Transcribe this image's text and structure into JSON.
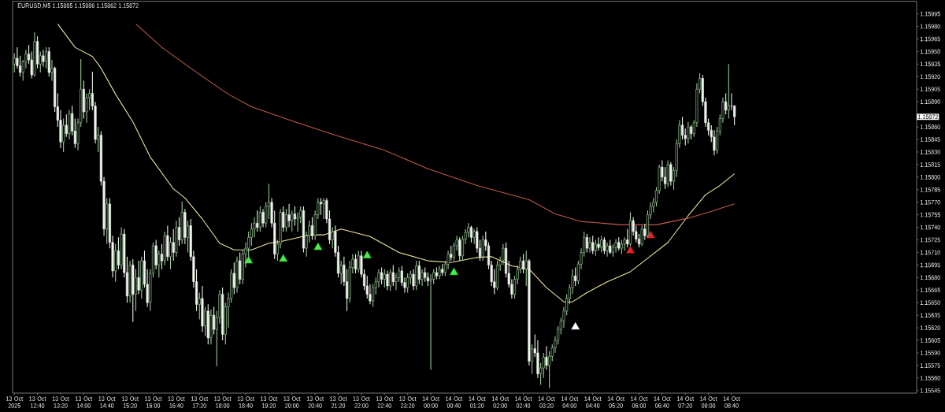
{
  "chart_data": {
    "type": "candlestick",
    "title": "EURUSD,M5 1.15885 1.15886 1.15862 1.15872",
    "x": [
      "2025-10-13T12:00",
      "2025-10-13T12:05",
      "2025-10-13T12:10",
      "2025-10-13T12:15",
      "2025-10-13T12:20",
      "2025-10-13T12:25",
      "2025-10-13T12:30",
      "2025-10-13T12:35",
      "2025-10-13T12:40",
      "2025-10-13T12:45",
      "2025-10-13T12:50",
      "2025-10-13T12:55",
      "2025-10-13T13:00",
      "2025-10-13T13:05",
      "2025-10-13T13:10",
      "2025-10-13T13:15",
      "2025-10-13T13:20",
      "2025-10-13T13:25",
      "2025-10-13T13:30",
      "2025-10-13T13:35",
      "2025-10-13T13:40",
      "2025-10-13T13:45",
      "2025-10-13T13:50",
      "2025-10-13T13:55",
      "2025-10-13T14:00",
      "2025-10-13T14:05",
      "2025-10-13T14:10",
      "2025-10-13T14:15",
      "2025-10-13T14:20",
      "2025-10-13T14:25",
      "2025-10-13T14:30",
      "2025-10-13T14:35",
      "2025-10-13T14:40",
      "2025-10-13T14:45",
      "2025-10-13T14:50",
      "2025-10-13T14:55",
      "2025-10-13T15:00",
      "2025-10-13T15:05",
      "2025-10-13T15:10",
      "2025-10-13T15:15",
      "2025-10-13T15:20",
      "2025-10-13T15:25",
      "2025-10-13T15:30",
      "2025-10-13T15:35",
      "2025-10-13T15:40",
      "2025-10-13T15:45",
      "2025-10-13T15:50",
      "2025-10-13T15:55",
      "2025-10-13T16:00",
      "2025-10-13T16:05",
      "2025-10-13T16:10",
      "2025-10-13T16:15",
      "2025-10-13T16:20",
      "2025-10-13T16:25",
      "2025-10-13T16:30",
      "2025-10-13T16:35",
      "2025-10-13T16:40",
      "2025-10-13T16:45",
      "2025-10-13T16:50",
      "2025-10-13T16:55",
      "2025-10-13T17:00",
      "2025-10-13T17:05",
      "2025-10-13T17:10",
      "2025-10-13T17:15",
      "2025-10-13T17:20",
      "2025-10-13T17:25",
      "2025-10-13T17:30",
      "2025-10-13T17:35",
      "2025-10-13T17:40",
      "2025-10-13T17:45",
      "2025-10-13T17:50",
      "2025-10-13T17:55",
      "2025-10-13T18:00",
      "2025-10-13T18:05",
      "2025-10-13T18:10",
      "2025-10-13T18:15",
      "2025-10-13T18:20",
      "2025-10-13T18:25",
      "2025-10-13T18:30",
      "2025-10-13T18:35",
      "2025-10-13T18:40",
      "2025-10-13T18:45",
      "2025-10-13T18:50",
      "2025-10-13T18:55",
      "2025-10-13T19:00",
      "2025-10-13T19:05",
      "2025-10-13T19:10",
      "2025-10-13T19:15",
      "2025-10-13T19:20",
      "2025-10-13T19:25",
      "2025-10-13T19:30",
      "2025-10-13T19:35",
      "2025-10-13T19:40",
      "2025-10-13T19:45",
      "2025-10-13T19:50",
      "2025-10-13T19:55",
      "2025-10-13T20:00",
      "2025-10-13T20:05",
      "2025-10-13T20:10",
      "2025-10-13T20:15",
      "2025-10-13T20:20",
      "2025-10-13T20:25",
      "2025-10-13T20:30",
      "2025-10-13T20:35",
      "2025-10-13T20:40",
      "2025-10-13T20:45",
      "2025-10-13T20:50",
      "2025-10-13T20:55",
      "2025-10-13T21:00",
      "2025-10-13T21:05",
      "2025-10-13T21:10",
      "2025-10-13T21:15",
      "2025-10-13T21:20",
      "2025-10-13T21:25",
      "2025-10-13T21:30",
      "2025-10-13T21:35",
      "2025-10-13T21:40",
      "2025-10-13T21:45",
      "2025-10-13T21:50",
      "2025-10-13T21:55",
      "2025-10-13T22:00",
      "2025-10-13T22:05",
      "2025-10-13T22:10",
      "2025-10-13T22:15",
      "2025-10-13T22:20",
      "2025-10-13T22:25",
      "2025-10-13T22:30",
      "2025-10-13T22:35",
      "2025-10-13T22:40",
      "2025-10-13T22:45",
      "2025-10-13T22:50",
      "2025-10-13T22:55",
      "2025-10-13T23:00",
      "2025-10-13T23:05",
      "2025-10-13T23:10",
      "2025-10-13T23:15",
      "2025-10-13T23:20",
      "2025-10-13T23:25",
      "2025-10-13T23:30",
      "2025-10-13T23:35",
      "2025-10-13T23:40",
      "2025-10-13T23:45",
      "2025-10-13T23:50",
      "2025-10-13T23:55",
      "2025-10-14T00:00",
      "2025-10-14T00:05",
      "2025-10-14T00:10",
      "2025-10-14T00:15",
      "2025-10-14T00:20",
      "2025-10-14T00:25",
      "2025-10-14T00:30",
      "2025-10-14T00:35",
      "2025-10-14T00:40",
      "2025-10-14T00:45",
      "2025-10-14T00:50",
      "2025-10-14T00:55",
      "2025-10-14T01:00",
      "2025-10-14T01:05",
      "2025-10-14T01:10",
      "2025-10-14T01:15",
      "2025-10-14T01:20",
      "2025-10-14T01:25",
      "2025-10-14T01:30",
      "2025-10-14T01:35",
      "2025-10-14T01:40",
      "2025-10-14T01:45",
      "2025-10-14T01:50",
      "2025-10-14T01:55",
      "2025-10-14T02:00",
      "2025-10-14T02:05",
      "2025-10-14T02:10",
      "2025-10-14T02:15",
      "2025-10-14T02:20",
      "2025-10-14T02:25",
      "2025-10-14T02:30",
      "2025-10-14T02:35",
      "2025-10-14T02:40",
      "2025-10-14T02:45",
      "2025-10-14T02:50",
      "2025-10-14T02:55",
      "2025-10-14T03:00",
      "2025-10-14T03:05",
      "2025-10-14T03:10",
      "2025-10-14T03:15",
      "2025-10-14T03:20",
      "2025-10-14T03:25",
      "2025-10-14T03:30",
      "2025-10-14T03:35",
      "2025-10-14T03:40",
      "2025-10-14T03:45",
      "2025-10-14T03:50",
      "2025-10-14T03:55",
      "2025-10-14T04:00",
      "2025-10-14T04:05",
      "2025-10-14T04:10",
      "2025-10-14T04:15",
      "2025-10-14T04:20",
      "2025-10-14T04:25",
      "2025-10-14T04:30",
      "2025-10-14T04:35",
      "2025-10-14T04:40",
      "2025-10-14T04:45",
      "2025-10-14T04:50",
      "2025-10-14T04:55",
      "2025-10-14T05:00",
      "2025-10-14T05:05",
      "2025-10-14T05:10",
      "2025-10-14T05:15",
      "2025-10-14T05:20",
      "2025-10-14T05:25",
      "2025-10-14T05:30",
      "2025-10-14T05:35",
      "2025-10-14T05:40",
      "2025-10-14T05:45",
      "2025-10-14T05:50",
      "2025-10-14T05:55",
      "2025-10-14T06:00",
      "2025-10-14T06:05",
      "2025-10-14T06:10",
      "2025-10-14T06:15",
      "2025-10-14T06:20",
      "2025-10-14T06:25",
      "2025-10-14T06:30",
      "2025-10-14T06:35",
      "2025-10-14T06:40",
      "2025-10-14T06:45",
      "2025-10-14T06:50",
      "2025-10-14T06:55",
      "2025-10-14T07:00",
      "2025-10-14T07:05",
      "2025-10-14T07:10",
      "2025-10-14T07:15",
      "2025-10-14T07:20",
      "2025-10-14T07:25",
      "2025-10-14T07:30",
      "2025-10-14T07:35",
      "2025-10-14T07:40",
      "2025-10-14T07:45",
      "2025-10-14T07:50",
      "2025-10-14T07:55",
      "2025-10-14T08:00",
      "2025-10-14T08:05",
      "2025-10-14T08:10",
      "2025-10-14T08:15",
      "2025-10-14T08:20",
      "2025-10-14T08:25",
      "2025-10-14T08:30",
      "2025-10-14T08:35",
      "2025-10-14T08:40",
      "2025-10-14T08:45"
    ],
    "ohlc": [
      [
        1.15935,
        1.15948,
        1.15925,
        1.15942
      ],
      [
        1.15942,
        1.15955,
        1.1593,
        1.15933
      ],
      [
        1.15933,
        1.15945,
        1.1592,
        1.15925
      ],
      [
        1.15925,
        1.1594,
        1.15915,
        1.15938
      ],
      [
        1.15938,
        1.15952,
        1.1593,
        1.15947
      ],
      [
        1.15947,
        1.15958,
        1.15935,
        1.1594
      ],
      [
        1.1594,
        1.1595,
        1.15918,
        1.15922
      ],
      [
        1.15922,
        1.15973,
        1.1592,
        1.15962
      ],
      [
        1.15962,
        1.15968,
        1.1593,
        1.15935
      ],
      [
        1.15935,
        1.1595,
        1.15925,
        1.15945
      ],
      [
        1.15945,
        1.15952,
        1.15932,
        1.15938
      ],
      [
        1.15938,
        1.15955,
        1.1593,
        1.1595
      ],
      [
        1.1595,
        1.15955,
        1.1592,
        1.15925
      ],
      [
        1.15925,
        1.1594,
        1.15915,
        1.1593
      ],
      [
        1.1593,
        1.15932,
        1.15878,
        1.15884
      ],
      [
        1.15884,
        1.159,
        1.1586,
        1.15868
      ],
      [
        1.15868,
        1.1588,
        1.15835,
        1.15842
      ],
      [
        1.15842,
        1.1587,
        1.1583,
        1.15862
      ],
      [
        1.15862,
        1.15875,
        1.15848,
        1.15852
      ],
      [
        1.15852,
        1.1588,
        1.15845,
        1.15876
      ],
      [
        1.15876,
        1.15885,
        1.1585,
        1.15855
      ],
      [
        1.15855,
        1.1587,
        1.15835,
        1.1584
      ],
      [
        1.1584,
        1.1587,
        1.15832,
        1.15865
      ],
      [
        1.15865,
        1.15941,
        1.1586,
        1.15905
      ],
      [
        1.15905,
        1.15915,
        1.1587,
        1.15878
      ],
      [
        1.15878,
        1.159,
        1.15865,
        1.15895
      ],
      [
        1.15895,
        1.15905,
        1.1588,
        1.159
      ],
      [
        1.159,
        1.15926,
        1.1588,
        1.15885
      ],
      [
        1.15885,
        1.1589,
        1.1584,
        1.15845
      ],
      [
        1.15845,
        1.1586,
        1.1583,
        1.1585
      ],
      [
        1.1585,
        1.15855,
        1.1579,
        1.15795
      ],
      [
        1.15795,
        1.158,
        1.1573,
        1.15738
      ],
      [
        1.15738,
        1.15775,
        1.1572,
        1.15768
      ],
      [
        1.15768,
        1.15775,
        1.15715,
        1.15722
      ],
      [
        1.15722,
        1.1573,
        1.1568,
        1.15688
      ],
      [
        1.15688,
        1.1572,
        1.15675,
        1.15712
      ],
      [
        1.15712,
        1.15728,
        1.1569,
        1.15695
      ],
      [
        1.15695,
        1.1574,
        1.1569,
        1.15732
      ],
      [
        1.15732,
        1.15738,
        1.1568,
        1.15686
      ],
      [
        1.15686,
        1.15705,
        1.1565,
        1.15658
      ],
      [
        1.15658,
        1.157,
        1.1565,
        1.15695
      ],
      [
        1.15695,
        1.15702,
        1.15627,
        1.1566
      ],
      [
        1.1566,
        1.1569,
        1.1564,
        1.1568
      ],
      [
        1.1568,
        1.157,
        1.1566,
        1.15665
      ],
      [
        1.15665,
        1.15705,
        1.15655,
        1.157
      ],
      [
        1.157,
        1.15712,
        1.15668,
        1.15672
      ],
      [
        1.15672,
        1.1569,
        1.15645,
        1.1565
      ],
      [
        1.1565,
        1.1569,
        1.1564,
        1.15685
      ],
      [
        1.15685,
        1.15722,
        1.1568,
        1.15718
      ],
      [
        1.15718,
        1.15725,
        1.1569,
        1.15695
      ],
      [
        1.15695,
        1.15712,
        1.1568,
        1.15708
      ],
      [
        1.15708,
        1.1572,
        1.1569,
        1.157
      ],
      [
        1.157,
        1.15735,
        1.15695,
        1.1573
      ],
      [
        1.1573,
        1.15742,
        1.157,
        1.15705
      ],
      [
        1.15705,
        1.15728,
        1.1569,
        1.15722
      ],
      [
        1.15722,
        1.15738,
        1.157,
        1.1571
      ],
      [
        1.1571,
        1.15748,
        1.15705,
        1.1574
      ],
      [
        1.1574,
        1.15752,
        1.15718,
        1.15725
      ],
      [
        1.15725,
        1.15771,
        1.1572,
        1.15758
      ],
      [
        1.15758,
        1.15762,
        1.1572,
        1.15728
      ],
      [
        1.15728,
        1.15748,
        1.1571,
        1.15742
      ],
      [
        1.15742,
        1.1575,
        1.157,
        1.15705
      ],
      [
        1.15705,
        1.15712,
        1.15668,
        1.15675
      ],
      [
        1.15675,
        1.1569,
        1.1564,
        1.15648
      ],
      [
        1.15648,
        1.15662,
        1.1563,
        1.15655
      ],
      [
        1.15655,
        1.1567,
        1.15615,
        1.15622
      ],
      [
        1.15622,
        1.15645,
        1.1561,
        1.1564
      ],
      [
        1.1564,
        1.15648,
        1.156,
        1.15608
      ],
      [
        1.15608,
        1.15642,
        1.156,
        1.15635
      ],
      [
        1.15635,
        1.15645,
        1.15612,
        1.15618
      ],
      [
        1.15618,
        1.1564,
        1.15574,
        1.15632
      ],
      [
        1.15632,
        1.15665,
        1.15625,
        1.1566
      ],
      [
        1.1566,
        1.15668,
        1.15605,
        1.15612
      ],
      [
        1.15612,
        1.1565,
        1.156,
        1.15645
      ],
      [
        1.15645,
        1.15662,
        1.1562,
        1.15655
      ],
      [
        1.15655,
        1.1569,
        1.1565,
        1.15685
      ],
      [
        1.15685,
        1.15698,
        1.1566,
        1.15668
      ],
      [
        1.15668,
        1.15705,
        1.15662,
        1.157
      ],
      [
        1.157,
        1.1571,
        1.15672,
        1.15678
      ],
      [
        1.15678,
        1.15712,
        1.15672,
        1.15708
      ],
      [
        1.15708,
        1.15722,
        1.15692,
        1.15715
      ],
      [
        1.15715,
        1.15735,
        1.15705,
        1.15728
      ],
      [
        1.15728,
        1.15745,
        1.15718,
        1.15738
      ],
      [
        1.15738,
        1.15752,
        1.15728,
        1.15745
      ],
      [
        1.15745,
        1.1576,
        1.15735,
        1.1574
      ],
      [
        1.1574,
        1.15765,
        1.15735,
        1.15758
      ],
      [
        1.15758,
        1.15762,
        1.1574,
        1.15745
      ],
      [
        1.15745,
        1.1577,
        1.1574,
        1.15765
      ],
      [
        1.15765,
        1.15792,
        1.1575,
        1.1577
      ],
      [
        1.1577,
        1.15775,
        1.1574,
        1.15745
      ],
      [
        1.15745,
        1.1576,
        1.15702,
        1.15708
      ],
      [
        1.15708,
        1.15725,
        1.157,
        1.1572
      ],
      [
        1.1572,
        1.15762,
        1.15715,
        1.15758
      ],
      [
        1.15758,
        1.15765,
        1.15735,
        1.1574
      ],
      [
        1.1574,
        1.15762,
        1.15735,
        1.15755
      ],
      [
        1.15755,
        1.15768,
        1.1574,
        1.15748
      ],
      [
        1.15748,
        1.1576,
        1.15735,
        1.15756
      ],
      [
        1.15756,
        1.15765,
        1.15742,
        1.1575
      ],
      [
        1.1575,
        1.15758,
        1.15735,
        1.15752
      ],
      [
        1.15752,
        1.15765,
        1.15745,
        1.1576
      ],
      [
        1.1576,
        1.15765,
        1.1571,
        1.15715
      ],
      [
        1.15715,
        1.15735,
        1.15705,
        1.1573
      ],
      [
        1.1573,
        1.15748,
        1.15722,
        1.15742
      ],
      [
        1.15742,
        1.15752,
        1.15725,
        1.1573
      ],
      [
        1.1573,
        1.1576,
        1.15725,
        1.15755
      ],
      [
        1.15755,
        1.15775,
        1.1575,
        1.1577
      ],
      [
        1.1577,
        1.15775,
        1.15755,
        1.15768
      ],
      [
        1.15768,
        1.15775,
        1.1575,
        1.15772
      ],
      [
        1.15772,
        1.15775,
        1.15745,
        1.1575
      ],
      [
        1.1575,
        1.1576,
        1.1572,
        1.15725
      ],
      [
        1.15725,
        1.1574,
        1.15715,
        1.15735
      ],
      [
        1.15735,
        1.15742,
        1.15705,
        1.1571
      ],
      [
        1.1571,
        1.15718,
        1.1568,
        1.15685
      ],
      [
        1.15685,
        1.157,
        1.15672,
        1.15695
      ],
      [
        1.15695,
        1.15705,
        1.1567,
        1.15675
      ],
      [
        1.15675,
        1.1569,
        1.1564,
        1.15655
      ],
      [
        1.15655,
        1.157,
        1.1565,
        1.15692
      ],
      [
        1.15692,
        1.15708,
        1.15685,
        1.15702
      ],
      [
        1.15702,
        1.15708,
        1.15685,
        1.1569
      ],
      [
        1.1569,
        1.15712,
        1.15686,
        1.15706
      ],
      [
        1.15706,
        1.15712,
        1.1568,
        1.15684
      ],
      [
        1.15684,
        1.1569,
        1.15665,
        1.1567
      ],
      [
        1.1567,
        1.15682,
        1.15655,
        1.1566
      ],
      [
        1.1566,
        1.15672,
        1.15648,
        1.15652
      ],
      [
        1.15652,
        1.15672,
        1.15645,
        1.15668
      ],
      [
        1.15668,
        1.1568,
        1.1566,
        1.15675
      ],
      [
        1.15675,
        1.1569,
        1.15668,
        1.15686
      ],
      [
        1.15686,
        1.15692,
        1.15672,
        1.15678
      ],
      [
        1.15678,
        1.1569,
        1.15668,
        1.15684
      ],
      [
        1.15684,
        1.15688,
        1.15665,
        1.1567
      ],
      [
        1.1567,
        1.1569,
        1.15664,
        1.15686
      ],
      [
        1.15686,
        1.15695,
        1.1567,
        1.15675
      ],
      [
        1.15675,
        1.15685,
        1.15665,
        1.1568
      ],
      [
        1.1568,
        1.15692,
        1.15675,
        1.15688
      ],
      [
        1.15688,
        1.15694,
        1.1567,
        1.15674
      ],
      [
        1.15674,
        1.1568,
        1.15662,
        1.15668
      ],
      [
        1.15668,
        1.15685,
        1.15662,
        1.1568
      ],
      [
        1.1568,
        1.15688,
        1.15672,
        1.15684
      ],
      [
        1.15684,
        1.1569,
        1.15665,
        1.1567
      ],
      [
        1.1567,
        1.157,
        1.15665,
        1.15694
      ],
      [
        1.15694,
        1.157,
        1.15672,
        1.15678
      ],
      [
        1.15678,
        1.1569,
        1.1567,
        1.15686
      ],
      [
        1.15686,
        1.15692,
        1.15675,
        1.1568
      ],
      [
        1.1568,
        1.15686,
        1.1567,
        1.15676
      ],
      [
        1.15676,
        1.15684,
        1.1557,
        1.15678
      ],
      [
        1.15678,
        1.1569,
        1.15672,
        1.15686
      ],
      [
        1.15686,
        1.15692,
        1.15678,
        1.15682
      ],
      [
        1.15682,
        1.15694,
        1.15678,
        1.1569
      ],
      [
        1.1569,
        1.15696,
        1.15682,
        1.15686
      ],
      [
        1.15686,
        1.157,
        1.15682,
        1.15696
      ],
      [
        1.15696,
        1.15712,
        1.1569,
        1.15708
      ],
      [
        1.15708,
        1.15718,
        1.157,
        1.15704
      ],
      [
        1.15704,
        1.15722,
        1.157,
        1.15718
      ],
      [
        1.15718,
        1.1573,
        1.15712,
        1.15725
      ],
      [
        1.15725,
        1.15728,
        1.157,
        1.15706
      ],
      [
        1.15706,
        1.1573,
        1.157,
        1.15726
      ],
      [
        1.15726,
        1.15738,
        1.1572,
        1.15734
      ],
      [
        1.15734,
        1.15745,
        1.15728,
        1.1574
      ],
      [
        1.1574,
        1.15742,
        1.15722,
        1.15728
      ],
      [
        1.15728,
        1.15738,
        1.1572,
        1.15735
      ],
      [
        1.15735,
        1.1574,
        1.1571,
        1.15715
      ],
      [
        1.15715,
        1.15725,
        1.157,
        1.15705
      ],
      [
        1.15705,
        1.1573,
        1.157,
        1.15725
      ],
      [
        1.15725,
        1.15735,
        1.15712,
        1.15718
      ],
      [
        1.15718,
        1.15722,
        1.1569,
        1.15695
      ],
      [
        1.15695,
        1.157,
        1.1567,
        1.15675
      ],
      [
        1.15675,
        1.1569,
        1.1566,
        1.15668
      ],
      [
        1.15668,
        1.157,
        1.15665,
        1.15695
      ],
      [
        1.15695,
        1.15705,
        1.15688,
        1.157
      ],
      [
        1.157,
        1.1572,
        1.15695,
        1.15715
      ],
      [
        1.15715,
        1.15722,
        1.1568,
        1.15685
      ],
      [
        1.15685,
        1.157,
        1.15668,
        1.15672
      ],
      [
        1.15672,
        1.15678,
        1.15655,
        1.1566
      ],
      [
        1.1566,
        1.15682,
        1.15655,
        1.15678
      ],
      [
        1.15678,
        1.15695,
        1.15672,
        1.1569
      ],
      [
        1.1569,
        1.15705,
        1.15685,
        1.157
      ],
      [
        1.157,
        1.15708,
        1.15685,
        1.1569
      ],
      [
        1.1569,
        1.15712,
        1.1567,
        1.157
      ],
      [
        1.157,
        1.15702,
        1.15575,
        1.1558
      ],
      [
        1.1558,
        1.156,
        1.15565,
        1.15595
      ],
      [
        1.15595,
        1.15612,
        1.15585,
        1.1559
      ],
      [
        1.1559,
        1.15605,
        1.1556,
        1.15565
      ],
      [
        1.15565,
        1.15578,
        1.15552,
        1.15572
      ],
      [
        1.15572,
        1.1559,
        1.1556,
        1.15585
      ],
      [
        1.15585,
        1.15598,
        1.1557,
        1.15575
      ],
      [
        1.15575,
        1.15592,
        1.15548,
        1.15586
      ],
      [
        1.15586,
        1.156,
        1.1558,
        1.15596
      ],
      [
        1.15596,
        1.1561,
        1.1559,
        1.15605
      ],
      [
        1.15605,
        1.15622,
        1.156,
        1.15618
      ],
      [
        1.15618,
        1.15632,
        1.15612,
        1.15628
      ],
      [
        1.15628,
        1.15645,
        1.1562,
        1.1564
      ],
      [
        1.1564,
        1.1566,
        1.15635,
        1.15655
      ],
      [
        1.15655,
        1.15672,
        1.15648,
        1.15668
      ],
      [
        1.15668,
        1.1569,
        1.1566,
        1.15682
      ],
      [
        1.15682,
        1.15692,
        1.1567,
        1.15676
      ],
      [
        1.15676,
        1.157,
        1.15672,
        1.15696
      ],
      [
        1.15696,
        1.15715,
        1.1569,
        1.1571
      ],
      [
        1.1571,
        1.15735,
        1.15705,
        1.15728
      ],
      [
        1.15728,
        1.15732,
        1.1571,
        1.15715
      ],
      [
        1.15715,
        1.15728,
        1.1571,
        1.15722
      ],
      [
        1.15722,
        1.1573,
        1.15708,
        1.15712
      ],
      [
        1.15712,
        1.15725,
        1.15706,
        1.1572
      ],
      [
        1.1572,
        1.15728,
        1.15712,
        1.15716
      ],
      [
        1.15716,
        1.1573,
        1.1571,
        1.15725
      ],
      [
        1.15725,
        1.15728,
        1.15708,
        1.15712
      ],
      [
        1.15712,
        1.15722,
        1.15705,
        1.15718
      ],
      [
        1.15718,
        1.15725,
        1.15708,
        1.1571
      ],
      [
        1.1571,
        1.1572,
        1.15705,
        1.15716
      ],
      [
        1.15716,
        1.15726,
        1.1571,
        1.15722
      ],
      [
        1.15722,
        1.15728,
        1.15712,
        1.15715
      ],
      [
        1.15715,
        1.15725,
        1.15708,
        1.1572
      ],
      [
        1.1572,
        1.15728,
        1.15712,
        1.15725
      ],
      [
        1.15725,
        1.15738,
        1.15716,
        1.1572
      ],
      [
        1.1572,
        1.15758,
        1.15718,
        1.15748
      ],
      [
        1.15748,
        1.15752,
        1.1573,
        1.15735
      ],
      [
        1.15735,
        1.15742,
        1.15722,
        1.15726
      ],
      [
        1.15726,
        1.15732,
        1.15716,
        1.1572
      ],
      [
        1.1572,
        1.15742,
        1.15718,
        1.15738
      ],
      [
        1.15738,
        1.15744,
        1.15725,
        1.1573
      ],
      [
        1.1573,
        1.1576,
        1.15728,
        1.15755
      ],
      [
        1.15755,
        1.1577,
        1.1575,
        1.15765
      ],
      [
        1.15765,
        1.15775,
        1.15758,
        1.1577
      ],
      [
        1.1577,
        1.15788,
        1.15765,
        1.15784
      ],
      [
        1.15784,
        1.15815,
        1.1578,
        1.15812
      ],
      [
        1.15812,
        1.1582,
        1.15795,
        1.158
      ],
      [
        1.158,
        1.15812,
        1.15786,
        1.15792
      ],
      [
        1.15792,
        1.1582,
        1.15788,
        1.15815
      ],
      [
        1.15815,
        1.15818,
        1.1579,
        1.15795
      ],
      [
        1.15795,
        1.15812,
        1.15785,
        1.15808
      ],
      [
        1.15808,
        1.15845,
        1.158,
        1.1584
      ],
      [
        1.1584,
        1.15868,
        1.15835,
        1.15862
      ],
      [
        1.15862,
        1.15872,
        1.15845,
        1.1585
      ],
      [
        1.1585,
        1.15858,
        1.15838,
        1.15846
      ],
      [
        1.15846,
        1.15866,
        1.1584,
        1.1586
      ],
      [
        1.1586,
        1.15862,
        1.15845,
        1.15852
      ],
      [
        1.15852,
        1.15868,
        1.15848,
        1.15865
      ],
      [
        1.15865,
        1.15912,
        1.1586,
        1.15905
      ],
      [
        1.15905,
        1.15924,
        1.159,
        1.15918
      ],
      [
        1.15918,
        1.15922,
        1.15885,
        1.1589
      ],
      [
        1.1589,
        1.15895,
        1.1586,
        1.15865
      ],
      [
        1.15865,
        1.1587,
        1.1585,
        1.15856
      ],
      [
        1.15856,
        1.15862,
        1.15842,
        1.15848
      ],
      [
        1.15848,
        1.15856,
        1.15826,
        1.15832
      ],
      [
        1.15832,
        1.1586,
        1.15828,
        1.15855
      ],
      [
        1.15855,
        1.15875,
        1.1585,
        1.1587
      ],
      [
        1.1587,
        1.15895,
        1.15865,
        1.1589
      ],
      [
        1.1589,
        1.159,
        1.15875,
        1.1588
      ],
      [
        1.1588,
        1.15935,
        1.1587,
        1.15885
      ],
      [
        1.15885,
        1.159,
        1.1588,
        1.15885
      ],
      [
        1.15885,
        1.15886,
        1.15862,
        1.15872
      ]
    ],
    "series": [
      {
        "type": "line",
        "color": "#f0e6a0",
        "x": [
          "2025-10-13T13:15",
          "2025-10-13T13:45",
          "2025-10-13T14:15",
          "2025-10-13T14:30",
          "2025-10-13T14:55",
          "2025-10-13T15:25",
          "2025-10-13T15:55",
          "2025-10-13T16:35",
          "2025-10-13T16:55",
          "2025-10-13T17:25",
          "2025-10-13T17:55",
          "2025-10-13T18:20",
          "2025-10-13T18:50",
          "2025-10-13T19:20",
          "2025-10-13T19:40",
          "2025-10-13T20:30",
          "2025-10-13T20:55",
          "2025-10-13T21:25",
          "2025-10-13T22:15",
          "2025-10-13T23:05",
          "2025-10-13T23:55",
          "2025-10-14T00:35",
          "2025-10-14T01:20",
          "2025-10-14T01:45",
          "2025-10-14T02:20",
          "2025-10-14T02:50",
          "2025-10-14T03:20",
          "2025-10-14T03:50",
          "2025-10-14T04:05",
          "2025-10-14T04:30",
          "2025-10-14T05:05",
          "2025-10-14T05:45",
          "2025-10-14T06:15",
          "2025-10-14T06:50",
          "2025-10-14T07:25",
          "2025-10-14T07:55",
          "2025-10-14T08:20",
          "2025-10-14T08:45"
        ],
        "values": [
          1.15983,
          1.15955,
          1.15944,
          1.1593,
          1.15899,
          1.15866,
          1.15824,
          1.15786,
          1.15775,
          1.1575,
          1.15721,
          1.15713,
          1.15713,
          1.15721,
          1.15723,
          1.15731,
          1.15731,
          1.15738,
          1.15729,
          1.1571,
          1.157,
          1.15698,
          1.15704,
          1.15705,
          1.15694,
          1.1569,
          1.15668,
          1.15651,
          1.15651,
          1.15662,
          1.15675,
          1.15687,
          1.15703,
          1.15722,
          1.15754,
          1.15779,
          1.1579,
          1.15804
        ]
      },
      {
        "type": "line",
        "color": "#c0584a",
        "x": [
          "2025-10-13T15:30",
          "2025-10-13T16:15",
          "2025-10-13T17:05",
          "2025-10-13T18:10",
          "2025-10-13T18:50",
          "2025-10-13T20:05",
          "2025-10-13T21:20",
          "2025-10-13T22:40",
          "2025-10-13T23:55",
          "2025-10-14T01:20",
          "2025-10-14T02:50",
          "2025-10-14T03:35",
          "2025-10-14T04:20",
          "2025-10-14T05:30",
          "2025-10-14T06:30",
          "2025-10-14T07:25",
          "2025-10-14T08:00",
          "2025-10-14T08:45"
        ],
        "values": [
          1.15983,
          1.15955,
          1.1593,
          1.15899,
          1.15884,
          1.15866,
          1.15849,
          1.15832,
          1.1581,
          1.1579,
          1.15773,
          1.15756,
          1.15747,
          1.15743,
          1.15743,
          1.15751,
          1.15758,
          1.15768
        ]
      },
      {
        "type": "scatter",
        "color": "#44ee44",
        "marker": "triangle",
        "x": [
          "2025-10-13T18:45",
          "2025-10-13T19:45",
          "2025-10-13T20:45",
          "2025-10-13T22:10",
          "2025-10-14T00:40"
        ],
        "values": [
          1.157,
          1.15702,
          1.15716,
          1.15706,
          1.15686
        ]
      },
      {
        "type": "scatter",
        "color": "#ffffff",
        "marker": "triangle",
        "x": [
          "2025-10-14T04:10"
        ],
        "values": [
          1.15621
        ]
      },
      {
        "type": "scatter",
        "color": "#e8202a",
        "marker": "triangle",
        "x": [
          "2025-10-14T05:45",
          "2025-10-14T06:20"
        ],
        "values": [
          1.15712,
          1.1573
        ]
      }
    ],
    "annotations": [
      "1.15872"
    ],
    "xlim": [
      "2025-10-13T11:57",
      "2025-10-14T14:00"
    ],
    "ylim": [
      1.15542,
      1.1601
    ],
    "xticks": [
      {
        "value": "2025-10-13T12:00",
        "label": "13 Oct 2025"
      },
      {
        "value": "2025-10-13T12:40",
        "label": "13 Oct 12:40"
      },
      {
        "value": "2025-10-13T13:20",
        "label": "13 Oct 13:20"
      },
      {
        "value": "2025-10-13T14:00",
        "label": "13 Oct 14:00"
      },
      {
        "value": "2025-10-13T14:40",
        "label": "13 Oct 14:40"
      },
      {
        "value": "2025-10-13T15:20",
        "label": "13 Oct 15:20"
      },
      {
        "value": "2025-10-13T16:00",
        "label": "13 Oct 16:00"
      },
      {
        "value": "2025-10-13T16:40",
        "label": "13 Oct 16:40"
      },
      {
        "value": "2025-10-13T17:20",
        "label": "13 Oct 17:20"
      },
      {
        "value": "2025-10-13T18:00",
        "label": "13 Oct 18:00"
      },
      {
        "value": "2025-10-13T18:40",
        "label": "13 Oct 18:40"
      },
      {
        "value": "2025-10-13T19:20",
        "label": "13 Oct 19:20"
      },
      {
        "value": "2025-10-13T20:00",
        "label": "13 Oct 20:00"
      },
      {
        "value": "2025-10-13T20:40",
        "label": "13 Oct 20:40"
      },
      {
        "value": "2025-10-13T21:20",
        "label": "13 Oct 21:20"
      },
      {
        "value": "2025-10-13T22:00",
        "label": "13 Oct 22:00"
      },
      {
        "value": "2025-10-13T22:40",
        "label": "13 Oct 22:40"
      },
      {
        "value": "2025-10-13T23:20",
        "label": "13 Oct 23:20"
      },
      {
        "value": "2025-10-14T00:00",
        "label": "14 Oct 00:00"
      },
      {
        "value": "2025-10-14T00:40",
        "label": "14 Oct 00:40"
      },
      {
        "value": "2025-10-14T01:20",
        "label": "14 Oct 01:20"
      },
      {
        "value": "2025-10-14T02:00",
        "label": "14 Oct 02:00"
      },
      {
        "value": "2025-10-14T02:40",
        "label": "14 Oct 02:40"
      },
      {
        "value": "2025-10-14T03:20",
        "label": "14 Oct 03:20"
      },
      {
        "value": "2025-10-14T04:00",
        "label": "14 Oct 04:00"
      },
      {
        "value": "2025-10-14T04:40",
        "label": "14 Oct 04:40"
      },
      {
        "value": "2025-10-14T05:20",
        "label": "14 Oct 05:20"
      },
      {
        "value": "2025-10-14T06:00",
        "label": "14 Oct 06:00"
      },
      {
        "value": "2025-10-14T06:40",
        "label": "14 Oct 06:40"
      },
      {
        "value": "2025-10-14T07:20",
        "label": "14 Oct 07:20"
      },
      {
        "value": "2025-10-14T08:00",
        "label": "14 Oct 08:00"
      },
      {
        "value": "2025-10-14T08:40",
        "label": "14 Oct 08:40"
      }
    ],
    "yticks": [
      1.15545,
      {
        "value": 1.1556,
        "label": "1.15560"
      },
      1.15575,
      {
        "value": 1.1559,
        "label": "1.15590"
      },
      1.15605,
      {
        "value": 1.1562,
        "label": "1.15620"
      },
      1.15635,
      {
        "value": 1.1565,
        "label": "1.15650"
      },
      1.15665,
      {
        "value": 1.1568,
        "label": "1.15680"
      },
      1.15695,
      {
        "value": 1.1571,
        "label": "1.15710"
      },
      1.15725,
      {
        "value": 1.1574,
        "label": "1.15740"
      },
      1.15755,
      {
        "value": 1.1577,
        "label": "1.15770"
      },
      1.15785,
      {
        "value": 1.158,
        "label": "1.15800"
      },
      1.15815,
      {
        "value": 1.1583,
        "label": "1.15830"
      },
      1.15845,
      {
        "value": 1.1586,
        "label": "1.15860"
      },
      {
        "value": 1.15875,
        "label": null
      },
      {
        "value": 1.1589,
        "label": "1.15890"
      },
      1.15905,
      {
        "value": 1.1592,
        "label": "1.15920"
      },
      1.15935,
      {
        "value": 1.1595,
        "label": "1.15950"
      },
      1.15965,
      {
        "value": 1.1598,
        "label": "1.15980"
      },
      1.15995
    ]
  }
}
